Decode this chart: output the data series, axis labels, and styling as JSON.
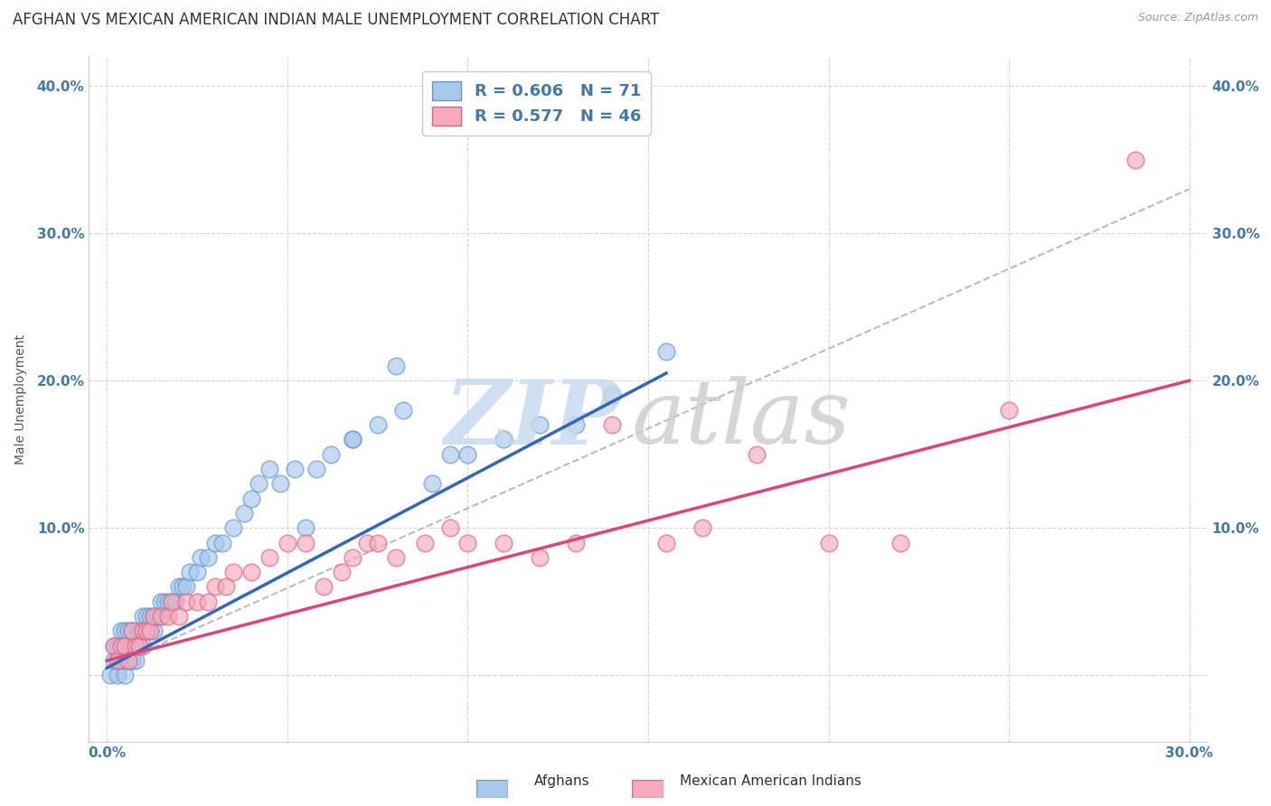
{
  "title": "AFGHAN VS MEXICAN AMERICAN INDIAN MALE UNEMPLOYMENT CORRELATION CHART",
  "source": "Source: ZipAtlas.com",
  "ylabel": "Male Unemployment",
  "xlabel": "",
  "legend_entry1": "R = 0.606   N = 71",
  "legend_entry2": "R = 0.577   N = 46",
  "color_afghan": "#A8C8EC",
  "color_afghan_edge": "#6699CC",
  "color_mexican": "#F4AABB",
  "color_mexican_edge": "#DD6688",
  "color_afghan_line": "#3366BB",
  "color_mexican_line": "#DD4477",
  "color_dashed": "#BBBBBB",
  "xlim": [
    -0.005,
    0.305
  ],
  "ylim": [
    -0.045,
    0.42
  ],
  "xticks": [
    0.0,
    0.05,
    0.1,
    0.15,
    0.2,
    0.25,
    0.3
  ],
  "yticks": [
    0.0,
    0.1,
    0.2,
    0.3,
    0.4
  ],
  "xticklabels": [
    "0.0%",
    "",
    "",
    "",
    "",
    "",
    "30.0%"
  ],
  "yticklabels": [
    "",
    "10.0%",
    "20.0%",
    "30.0%",
    "40.0%"
  ],
  "watermark_zip": "ZIP",
  "watermark_atlas": "atlas",
  "background_color": "#FFFFFF",
  "title_fontsize": 12,
  "axis_label_fontsize": 10,
  "tick_fontsize": 11,
  "tick_color": "#4477AA",
  "afghan_x": [
    0.001,
    0.002,
    0.002,
    0.003,
    0.003,
    0.003,
    0.004,
    0.004,
    0.004,
    0.005,
    0.005,
    0.005,
    0.005,
    0.006,
    0.006,
    0.006,
    0.007,
    0.007,
    0.007,
    0.008,
    0.008,
    0.009,
    0.009,
    0.01,
    0.01,
    0.01,
    0.011,
    0.011,
    0.012,
    0.012,
    0.013,
    0.013,
    0.014,
    0.015,
    0.015,
    0.016,
    0.017,
    0.018,
    0.019,
    0.02,
    0.021,
    0.022,
    0.023,
    0.025,
    0.026,
    0.028,
    0.03,
    0.032,
    0.035,
    0.038,
    0.04,
    0.042,
    0.045,
    0.048,
    0.052,
    0.058,
    0.062,
    0.068,
    0.075,
    0.082,
    0.09,
    0.095,
    0.1,
    0.11,
    0.12,
    0.13,
    0.14,
    0.155,
    0.055,
    0.068,
    0.08
  ],
  "afghan_y": [
    0.0,
    0.01,
    0.02,
    0.0,
    0.01,
    0.02,
    0.01,
    0.02,
    0.03,
    0.0,
    0.01,
    0.02,
    0.03,
    0.01,
    0.02,
    0.03,
    0.01,
    0.02,
    0.03,
    0.01,
    0.02,
    0.02,
    0.03,
    0.02,
    0.03,
    0.04,
    0.03,
    0.04,
    0.03,
    0.04,
    0.03,
    0.04,
    0.04,
    0.04,
    0.05,
    0.05,
    0.05,
    0.05,
    0.05,
    0.06,
    0.06,
    0.06,
    0.07,
    0.07,
    0.08,
    0.08,
    0.09,
    0.09,
    0.1,
    0.11,
    0.12,
    0.13,
    0.14,
    0.13,
    0.14,
    0.14,
    0.15,
    0.16,
    0.17,
    0.18,
    0.13,
    0.15,
    0.15,
    0.16,
    0.17,
    0.17,
    0.19,
    0.22,
    0.1,
    0.16,
    0.21
  ],
  "mexican_x": [
    0.002,
    0.003,
    0.004,
    0.005,
    0.006,
    0.007,
    0.008,
    0.009,
    0.01,
    0.011,
    0.012,
    0.013,
    0.015,
    0.017,
    0.018,
    0.02,
    0.022,
    0.025,
    0.028,
    0.03,
    0.033,
    0.035,
    0.04,
    0.045,
    0.05,
    0.055,
    0.06,
    0.065,
    0.068,
    0.072,
    0.075,
    0.08,
    0.088,
    0.095,
    0.1,
    0.11,
    0.12,
    0.13,
    0.14,
    0.155,
    0.165,
    0.18,
    0.2,
    0.22,
    0.25,
    0.285
  ],
  "mexican_y": [
    0.02,
    0.01,
    0.02,
    0.02,
    0.01,
    0.03,
    0.02,
    0.02,
    0.03,
    0.03,
    0.03,
    0.04,
    0.04,
    0.04,
    0.05,
    0.04,
    0.05,
    0.05,
    0.05,
    0.06,
    0.06,
    0.07,
    0.07,
    0.08,
    0.09,
    0.09,
    0.06,
    0.07,
    0.08,
    0.09,
    0.09,
    0.08,
    0.09,
    0.1,
    0.09,
    0.09,
    0.08,
    0.09,
    0.17,
    0.09,
    0.1,
    0.15,
    0.09,
    0.09,
    0.18,
    0.35
  ],
  "af_line_x": [
    0.0,
    0.155
  ],
  "af_line_y": [
    0.005,
    0.205
  ],
  "mx_line_x": [
    0.0,
    0.3
  ],
  "mx_line_y": [
    0.01,
    0.2
  ],
  "dash_line_x": [
    0.0,
    0.3
  ],
  "dash_line_y": [
    0.005,
    0.33
  ]
}
